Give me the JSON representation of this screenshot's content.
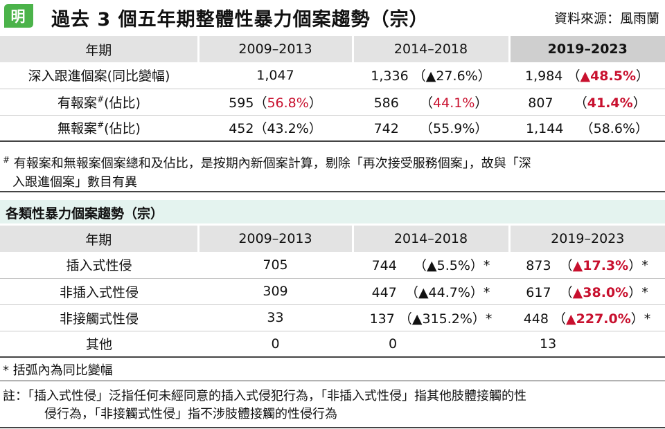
{
  "header": {
    "logo_char": "明",
    "title": "過去 3 個五年期整體性暴力個案趨勢（宗）",
    "source": "資料來源：風雨蘭"
  },
  "table1": {
    "headers": [
      "年期",
      "2009–2013",
      "2014–2018",
      "2019–2023"
    ],
    "rows": [
      {
        "label": "深入跟進個案(同比變幅)",
        "c1": {
          "v": "1,047",
          "p": ""
        },
        "c2": {
          "v": "1,336",
          "p": "（▲27.6%）"
        },
        "c3": {
          "v": "1,984",
          "p_open": "（",
          "p": "▲48.5%",
          "p_close": "）"
        }
      },
      {
        "label": "有報案",
        "label_sup": "#",
        "label_suffix": "(佔比)",
        "c1": {
          "v": "595",
          "p_open": "（",
          "p": "56.8%",
          "p_close": "）"
        },
        "c2": {
          "v": "586",
          "p_open": "（",
          "p": "44.1%",
          "p_close": "）"
        },
        "c3": {
          "v": "807",
          "p_open": "（",
          "p": "41.4%",
          "p_close": "）"
        }
      },
      {
        "label": "無報案",
        "label_sup": "#",
        "label_suffix": "(佔比)",
        "c1": {
          "v": "452",
          "p": "（43.2%）"
        },
        "c2": {
          "v": "742",
          "p": "（55.9%）"
        },
        "c3": {
          "v": "1,144",
          "p": "（58.6%）"
        }
      }
    ]
  },
  "note1": {
    "mark": "#",
    "line1": "有報案和無報案個案總和及佔比，是按期內新個案計算，剔除「再次接受服務個案」，故與「深",
    "line2": "入跟進個案」數目有異"
  },
  "section2": {
    "title": "各類性暴力個案趨勢（宗）"
  },
  "table2": {
    "headers": [
      "年期",
      "2009–2013",
      "2014–2018",
      "2019–2023"
    ],
    "rows": [
      {
        "label": "插入式性侵",
        "c1": "705",
        "c2": {
          "v": "744",
          "p": "（▲5.5%）*"
        },
        "c3": {
          "v": "873",
          "p_open": "（",
          "p": "▲17.3%",
          "p_close": "）*"
        }
      },
      {
        "label": "非插入式性侵",
        "c1": "309",
        "c2": {
          "v": "447",
          "p": "（▲44.7%）*"
        },
        "c3": {
          "v": "617",
          "p_open": "（",
          "p": "▲38.0%",
          "p_close": "）*"
        }
      },
      {
        "label": "非接觸式性侵",
        "c1": "33",
        "c2": {
          "v": "137",
          "p": "（▲315.2%）*"
        },
        "c3": {
          "v": "448",
          "p_open": "（",
          "p": "▲227.0%",
          "p_close": "）*"
        }
      },
      {
        "label": "其他",
        "c1": "0",
        "c2": {
          "v": "0",
          "p": ""
        },
        "c3": {
          "v": "13",
          "p": ""
        }
      }
    ]
  },
  "note2": "* 括弧內為同比變幅",
  "note3": {
    "line1": "註：「插入式性侵」泛指任何未經同意的插入式侵犯行為，「非插入式性侵」指其他肢體接觸的性",
    "line2": "侵行為，「非接觸式性侵」指不涉肢體接觸的性侵行為"
  },
  "colors": {
    "accent_red": "#c8102e",
    "logo_green": "#4bb34a",
    "section_bg": "#e4f3ef"
  }
}
